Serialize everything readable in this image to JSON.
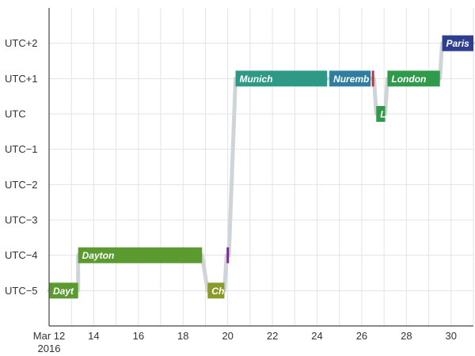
{
  "chart_data": {
    "type": "timeline",
    "grid": true,
    "y_ticks": [
      "UTC+2",
      "UTC+1",
      "UTC",
      "UTC−1",
      "UTC−2",
      "UTC−3",
      "UTC−4",
      "UTC−5"
    ],
    "y_offsets": [
      2,
      1,
      0,
      -1,
      -2,
      -3,
      -4,
      -5
    ],
    "y_range": [
      -6,
      3
    ],
    "x_range_days": [
      12,
      31
    ],
    "x_ticks": [
      {
        "day": 12,
        "label": "Mar 12",
        "sublabel": "2016"
      },
      {
        "day": 14,
        "label": "14"
      },
      {
        "day": 16,
        "label": "16"
      },
      {
        "day": 18,
        "label": "18"
      },
      {
        "day": 20,
        "label": "20"
      },
      {
        "day": 22,
        "label": "22"
      },
      {
        "day": 24,
        "label": "24"
      },
      {
        "day": 26,
        "label": "26"
      },
      {
        "day": 28,
        "label": "28"
      },
      {
        "day": 30,
        "label": "30"
      }
    ],
    "segments": [
      {
        "label": "Dayt",
        "start": 12.0,
        "end": 13.3,
        "offset": -5,
        "color": "#5a9a2f"
      },
      {
        "label": "Dayton",
        "start": 13.3,
        "end": 18.85,
        "offset": -4,
        "color": "#5a9a2f"
      },
      {
        "label": "Ch",
        "start": 19.1,
        "end": 19.85,
        "offset": -5,
        "color": "#8c9a2a"
      },
      {
        "label": "",
        "start": 19.95,
        "end": 20.05,
        "offset": -4,
        "color": "#7b2a8e"
      },
      {
        "label": "Munich",
        "start": 20.35,
        "end": 24.45,
        "offset": 1,
        "color": "#2e9a86"
      },
      {
        "label": "Nuremb",
        "start": 24.55,
        "end": 26.4,
        "offset": 1,
        "color": "#2f7ea0"
      },
      {
        "label": "",
        "start": 26.45,
        "end": 26.55,
        "offset": 1,
        "color": "#b03a48"
      },
      {
        "label": "L",
        "start": 26.65,
        "end": 27.05,
        "offset": 0,
        "color": "#2f9a4a"
      },
      {
        "label": "London",
        "start": 27.15,
        "end": 29.5,
        "offset": 1,
        "color": "#2f9a4a"
      },
      {
        "label": "Paris",
        "start": 29.6,
        "end": 31.0,
        "offset": 2,
        "color": "#2e3f8f"
      }
    ]
  }
}
